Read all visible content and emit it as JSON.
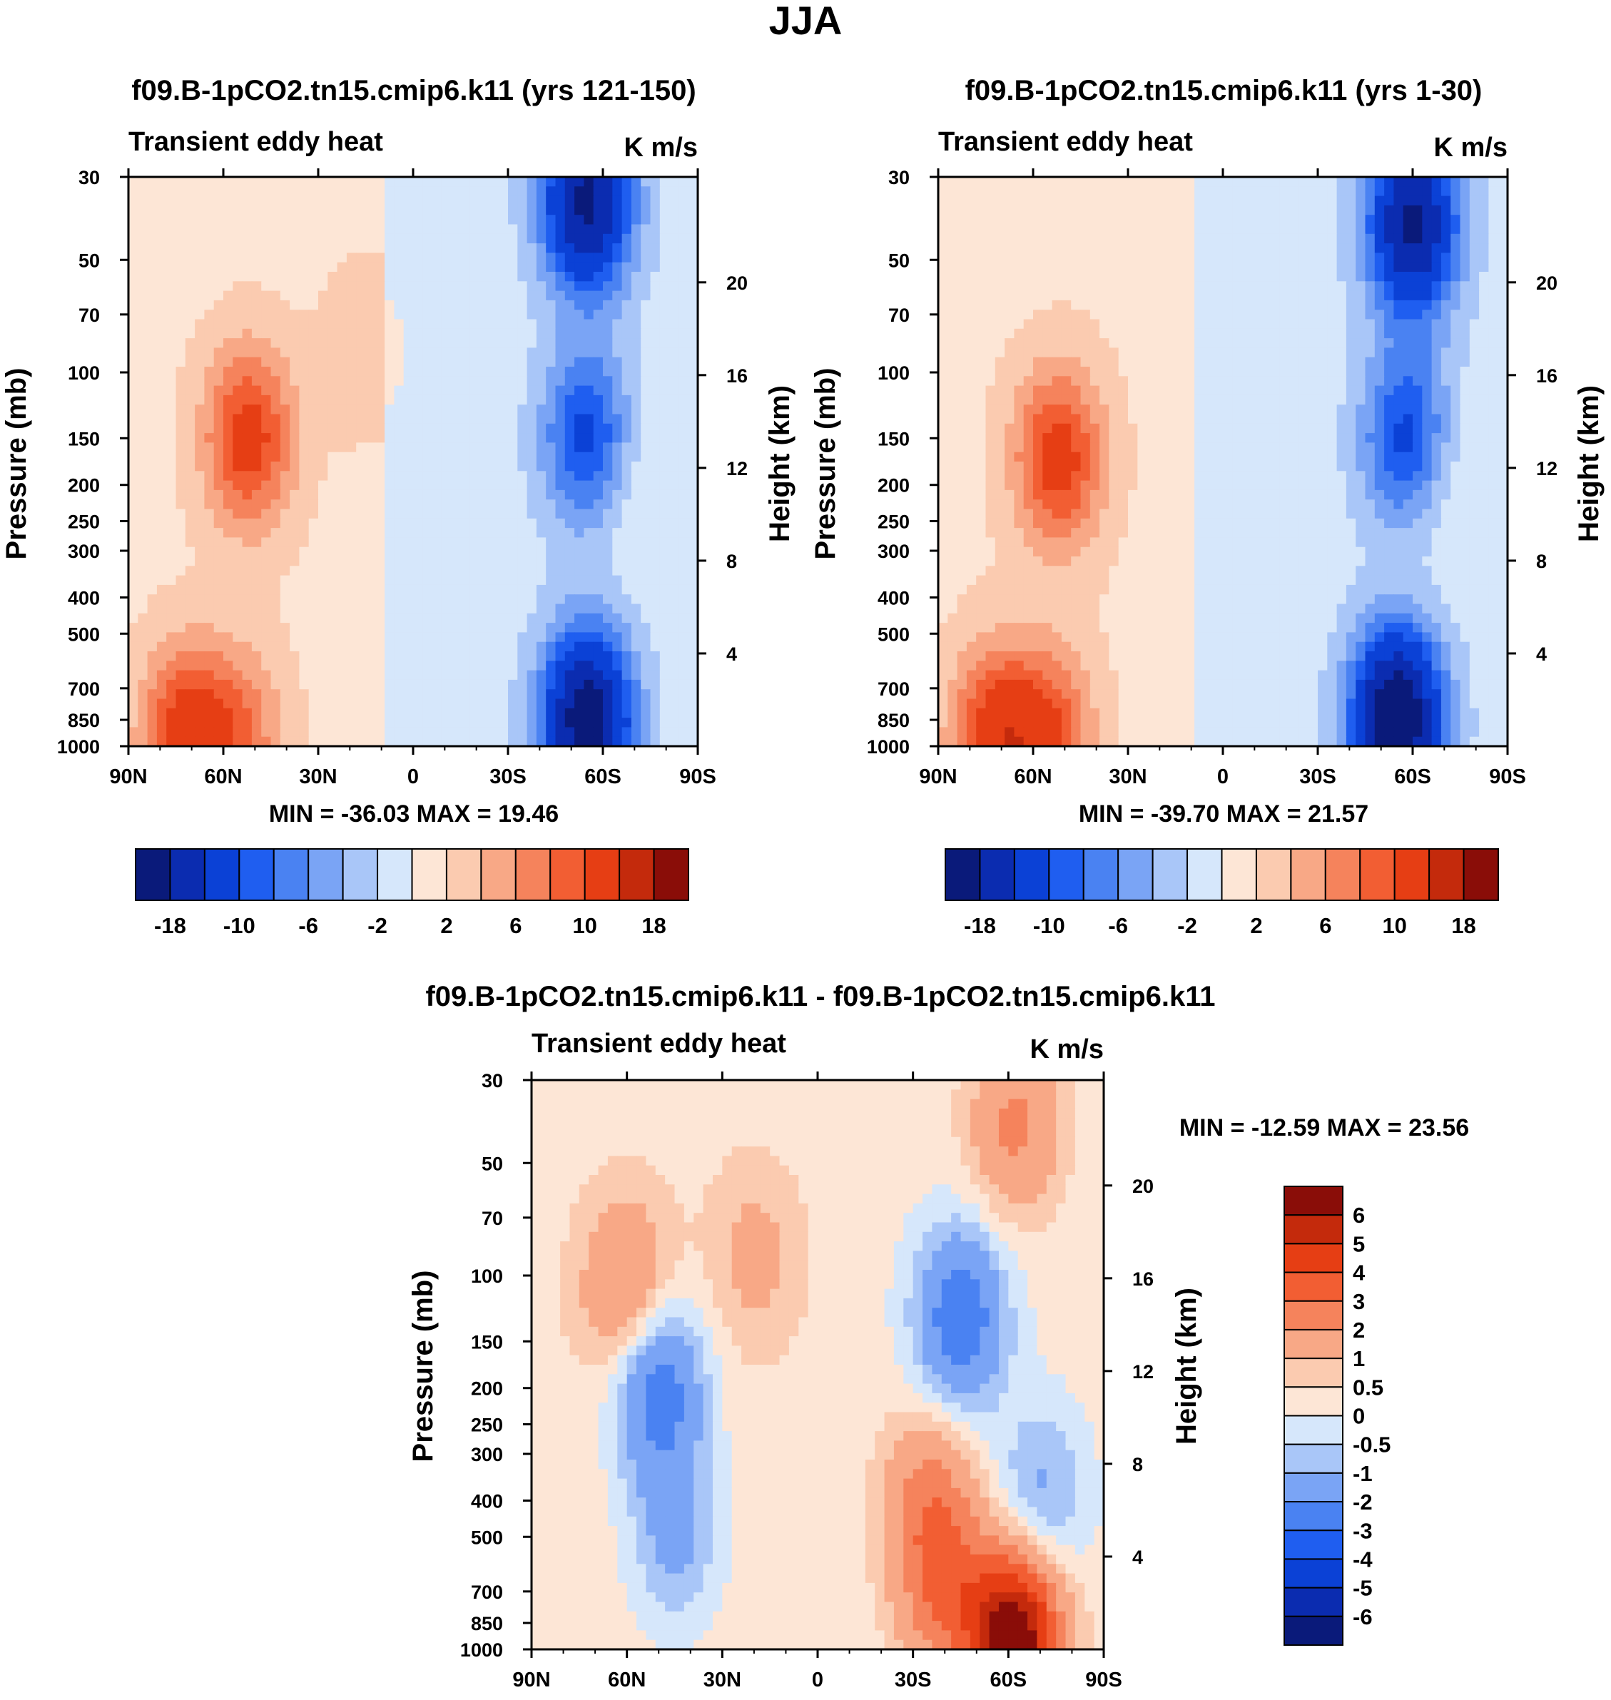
{
  "figure": {
    "title": "JJA",
    "colors": {
      "abs_blues": [
        "#0a1a7a",
        "#0b2cb0",
        "#0b41d6",
        "#1f5ef0",
        "#4a82f2",
        "#7aa4f5",
        "#a9c6f8",
        "#d6e7fb"
      ],
      "abs_reds": [
        "#fde6d6",
        "#fbcbb0",
        "#f8a886",
        "#f5835c",
        "#f25e33",
        "#e63e14",
        "#c42a0c",
        "#8a0d08"
      ],
      "diff_colors": [
        "#0a1a7a",
        "#0b2cb0",
        "#0b41d6",
        "#1f5ef0",
        "#4a82f2",
        "#7aa4f5",
        "#a9c6f8",
        "#d6e7fb",
        "#fde6d6",
        "#fbcbb0",
        "#f8a886",
        "#f5835c",
        "#f25e33",
        "#e63e14",
        "#c42a0c",
        "#8a0d08"
      ]
    }
  },
  "chart_data": [
    {
      "type": "heatmap",
      "panel": "top-left",
      "title": "f09.B-1pCO2.tn15.cmip6.k11 (yrs 121-150)",
      "subtitle_left": "Transient eddy heat",
      "units": "K m/s",
      "xlabel": "",
      "ylabel": "Pressure (mb)",
      "ylabel_right": "Height (km)",
      "x_ticks": [
        "90N",
        "60N",
        "30N",
        "0",
        "30S",
        "60S",
        "90S"
      ],
      "x_range": [
        90,
        -90
      ],
      "y_ticks": [
        30,
        50,
        70,
        100,
        150,
        200,
        250,
        300,
        400,
        500,
        700,
        850,
        1000
      ],
      "y_range": [
        30,
        1000
      ],
      "height_ticks": [
        20,
        16,
        12,
        8,
        4
      ],
      "min_label": "MIN = -36.03  MAX =  19.46",
      "colorbar_labels": [
        "-18",
        "-10",
        "-6",
        "-2",
        "2",
        "6",
        "10",
        "18"
      ],
      "features": [
        {
          "lat": 52,
          "p": 150,
          "value": 10
        },
        {
          "lat": 72,
          "p": 950,
          "value": 10
        },
        {
          "lat": 55,
          "p": 950,
          "value": 6
        },
        {
          "lat": -55,
          "p": 150,
          "value": -10
        },
        {
          "lat": -55,
          "p": 850,
          "value": -20
        },
        {
          "lat": -55,
          "p": 35,
          "value": -18
        },
        {
          "lat": 15,
          "p": 90,
          "value": 2
        },
        {
          "lat": 10,
          "p": 300,
          "value": -1
        },
        {
          "lat": -70,
          "p": 200,
          "value": 2
        }
      ]
    },
    {
      "type": "heatmap",
      "panel": "top-right",
      "title": "f09.B-1pCO2.tn15.cmip6.k11 (yrs 1-30)",
      "subtitle_left": "Transient eddy heat",
      "units": "K m/s",
      "xlabel": "",
      "ylabel": "Pressure (mb)",
      "ylabel_right": "Height (km)",
      "x_ticks": [
        "90N",
        "60N",
        "30N",
        "0",
        "30S",
        "60S",
        "90S"
      ],
      "x_range": [
        90,
        -90
      ],
      "y_ticks": [
        30,
        50,
        70,
        100,
        150,
        200,
        250,
        300,
        400,
        500,
        700,
        850,
        1000
      ],
      "y_range": [
        30,
        1000
      ],
      "height_ticks": [
        20,
        16,
        12,
        8,
        4
      ],
      "min_label": "MIN = -39.70  MAX =  21.57",
      "colorbar_labels": [
        "-18",
        "-10",
        "-6",
        "-2",
        "2",
        "6",
        "10",
        "18"
      ],
      "features": [
        {
          "lat": 52,
          "p": 170,
          "value": 10
        },
        {
          "lat": 72,
          "p": 950,
          "value": 10
        },
        {
          "lat": 55,
          "p": 950,
          "value": 8
        },
        {
          "lat": -58,
          "p": 150,
          "value": -10
        },
        {
          "lat": -55,
          "p": 850,
          "value": -22
        },
        {
          "lat": -60,
          "p": 40,
          "value": -18
        },
        {
          "lat": 0,
          "p": 300,
          "value": -1
        },
        {
          "lat": -70,
          "p": 200,
          "value": 2
        }
      ]
    },
    {
      "type": "heatmap",
      "panel": "bottom",
      "title": "f09.B-1pCO2.tn15.cmip6.k11 - f09.B-1pCO2.tn15.cmip6.k11",
      "subtitle_left": "Transient eddy heat",
      "units": "K m/s",
      "xlabel": "",
      "ylabel": "Pressure (mb)",
      "ylabel_right": "Height (km)",
      "x_ticks": [
        "90N",
        "60N",
        "30N",
        "0",
        "30S",
        "60S",
        "90S"
      ],
      "x_range": [
        90,
        -90
      ],
      "y_ticks": [
        30,
        50,
        70,
        100,
        150,
        200,
        250,
        300,
        400,
        500,
        700,
        850,
        1000
      ],
      "y_range": [
        30,
        1000
      ],
      "height_ticks": [
        20,
        16,
        12,
        8,
        4
      ],
      "min_label": "MIN = -12.59  MAX =  23.56",
      "colorbar_labels": [
        "6",
        "5",
        "4",
        "3",
        "2",
        "1",
        "0.5",
        "0",
        "-0.5",
        "-1",
        "-2",
        "-3",
        "-4",
        "-5",
        "-6"
      ],
      "features": [
        {
          "lat": 60,
          "p": 110,
          "value": 2
        },
        {
          "lat": 20,
          "p": 90,
          "value": 1
        },
        {
          "lat": 50,
          "p": 200,
          "value": -3
        },
        {
          "lat": 45,
          "p": 500,
          "value": -1.5
        },
        {
          "lat": -45,
          "p": 130,
          "value": -3
        },
        {
          "lat": -35,
          "p": 400,
          "value": 2
        },
        {
          "lat": -40,
          "p": 700,
          "value": 2.5
        },
        {
          "lat": -62,
          "p": 40,
          "value": 2
        },
        {
          "lat": -62,
          "p": 950,
          "value": 7
        },
        {
          "lat": -70,
          "p": 400,
          "value": -1.5
        }
      ]
    }
  ]
}
